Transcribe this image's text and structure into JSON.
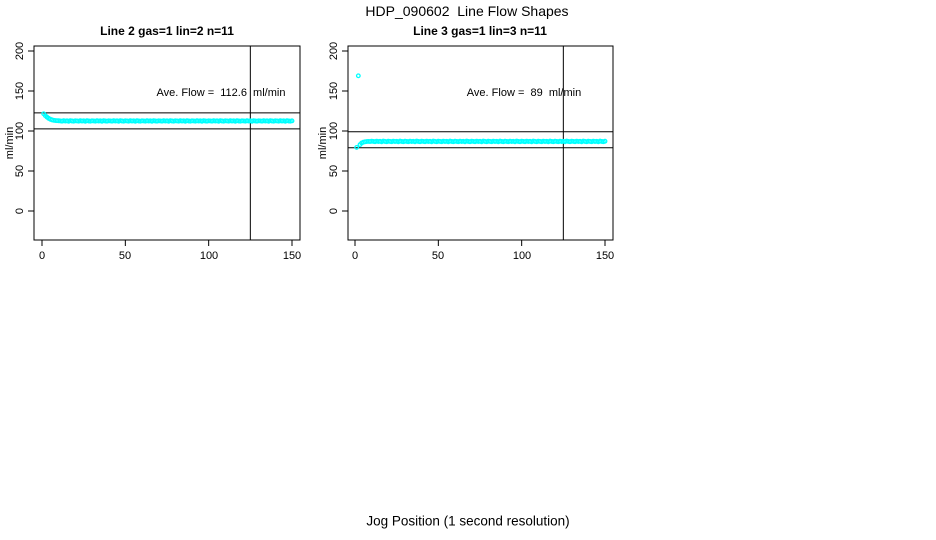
{
  "title": "HDP_090602  Line Flow Shapes",
  "xlabel": "Jog Position (1 second resolution)",
  "colors": {
    "points": "#00FFFF",
    "foreground": "#000000",
    "background": "#FFFFFF"
  },
  "chart_data": [
    {
      "type": "scatter",
      "title": "Line 2 gas=1 lin=2 n=11",
      "y_axis_label": "ml/min",
      "annotation": "Ave. Flow =  112.6  ml/min",
      "ave_flow_ml_min": 112.6,
      "x_tick_labels": [
        "0",
        "50",
        "100",
        "150"
      ],
      "y_tick_labels": [
        "0",
        "50",
        "100",
        "150",
        "200"
      ],
      "x_ticks": [
        0,
        50,
        100,
        150
      ],
      "y_ticks": [
        0,
        50,
        100,
        150,
        200
      ],
      "ref_hlines": [
        122.6,
        102.6
      ],
      "ref_vline": 125,
      "x_start": 1,
      "y": [
        121.5,
        119.2,
        117.3,
        115.8,
        114.7,
        113.9,
        113.4,
        113.1,
        112.9,
        112.8,
        112.6,
        112.3,
        112.8,
        112.4,
        112.7,
        112.2,
        112.9,
        112.5,
        112.3,
        112.7,
        112.6,
        112.3,
        112.8,
        112.4,
        112.7,
        112.2,
        112.9,
        112.5,
        112.3,
        112.7,
        112.6,
        112.3,
        112.8,
        112.4,
        112.7,
        112.2,
        112.9,
        112.5,
        112.3,
        112.7,
        112.6,
        112.3,
        112.8,
        112.4,
        112.7,
        112.2,
        112.9,
        112.5,
        112.3,
        112.7,
        112.6,
        112.3,
        112.8,
        112.4,
        112.7,
        112.2,
        112.9,
        112.5,
        112.3,
        112.7,
        112.6,
        112.3,
        112.8,
        112.4,
        112.7,
        112.2,
        112.9,
        112.5,
        112.3,
        112.7,
        112.6,
        112.3,
        112.8,
        112.4,
        112.7,
        112.2,
        112.9,
        112.5,
        112.3,
        112.7,
        112.6,
        112.3,
        112.8,
        112.4,
        112.7,
        112.2,
        112.9,
        112.5,
        112.3,
        112.7,
        112.6,
        112.3,
        112.8,
        112.4,
        112.7,
        112.2,
        112.9,
        112.5,
        112.3,
        112.7,
        112.6,
        112.3,
        112.8,
        112.4,
        112.7,
        112.2,
        112.9,
        112.5,
        112.3,
        112.7,
        112.6,
        112.3,
        112.8,
        112.4,
        112.7,
        112.2,
        112.9,
        112.5,
        112.3,
        112.7,
        112.6,
        112.3,
        112.8,
        112.4,
        112.7,
        112.2,
        112.9,
        112.5,
        112.3,
        112.7,
        112.6,
        112.3,
        112.8,
        112.4,
        112.7,
        112.2,
        112.9,
        112.5,
        112.3,
        112.7,
        112.6,
        112.3,
        112.8,
        112.4,
        112.7,
        112.2,
        112.9,
        112.5,
        112.3,
        112.7
      ]
    },
    {
      "type": "scatter",
      "title": "Line 3 gas=1 lin=3 n=11",
      "y_axis_label": "ml/min",
      "annotation": "Ave. Flow =  89  ml/min",
      "ave_flow_ml_min": 89,
      "x_tick_labels": [
        "0",
        "50",
        "100",
        "150"
      ],
      "y_tick_labels": [
        "0",
        "50",
        "100",
        "150",
        "200"
      ],
      "x_ticks": [
        0,
        50,
        100,
        150
      ],
      "y_ticks": [
        0,
        50,
        100,
        150,
        200
      ],
      "ref_hlines": [
        99,
        79
      ],
      "ref_vline": 125,
      "x_start": 1,
      "y": [
        79.5,
        169,
        83,
        85,
        86,
        86.5,
        86.8,
        87,
        86.8,
        87.2,
        87,
        86.6,
        87.3,
        86.8,
        87.1,
        86.5,
        87.4,
        86.9,
        86.6,
        87.2,
        87,
        86.6,
        87.3,
        86.8,
        87.1,
        86.5,
        87.4,
        86.9,
        86.6,
        87.2,
        87,
        86.6,
        87.3,
        86.8,
        87.1,
        86.5,
        87.4,
        86.9,
        86.6,
        87.2,
        87,
        86.6,
        87.3,
        86.8,
        87.1,
        86.5,
        87.4,
        86.9,
        86.6,
        87.2,
        87,
        86.6,
        87.3,
        86.8,
        87.1,
        86.5,
        87.4,
        86.9,
        86.6,
        87.2,
        87,
        86.6,
        87.3,
        86.8,
        87.1,
        86.5,
        87.4,
        86.9,
        86.6,
        87.2,
        87,
        86.6,
        87.3,
        86.8,
        87.1,
        86.5,
        87.4,
        86.9,
        86.6,
        87.2,
        87,
        86.6,
        87.3,
        86.8,
        87.1,
        86.5,
        87.4,
        86.9,
        86.6,
        87.2,
        87,
        86.6,
        87.3,
        86.8,
        87.1,
        86.5,
        87.4,
        86.9,
        86.6,
        87.2,
        87,
        86.6,
        87.3,
        86.8,
        87.1,
        86.5,
        87.4,
        86.9,
        86.6,
        87.2,
        87,
        86.6,
        87.3,
        86.8,
        87.1,
        86.5,
        87.4,
        86.9,
        86.6,
        87.2,
        87,
        86.6,
        87.3,
        86.8,
        87.1,
        86.5,
        87.4,
        86.9,
        86.6,
        87.2,
        87,
        86.6,
        87.3,
        86.8,
        87.1,
        86.5,
        87.4,
        86.9,
        86.6,
        87.2,
        87,
        86.6,
        87.3,
        86.8,
        87.1,
        86.5,
        87.4,
        86.9,
        86.6,
        87.2
      ]
    }
  ]
}
